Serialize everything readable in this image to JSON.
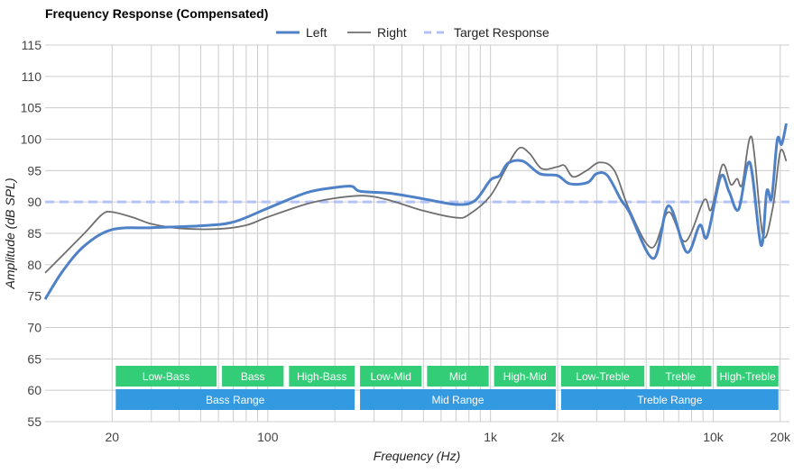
{
  "chart_data": {
    "type": "line",
    "title": "Frequency Response (Compensated)",
    "xlabel": "Frequency (Hz)",
    "ylabel": "Amplitude (dB SPL)",
    "x_scale": "log",
    "xlim": [
      10,
      22000
    ],
    "ylim": [
      55,
      115
    ],
    "y_ticks": [
      55,
      60,
      65,
      70,
      75,
      80,
      85,
      90,
      95,
      100,
      105,
      110,
      115
    ],
    "x_tick_labels": [
      {
        "value": 20,
        "label": "20"
      },
      {
        "value": 100,
        "label": "100"
      },
      {
        "value": 1000,
        "label": "1k"
      },
      {
        "value": 2000,
        "label": "2k"
      },
      {
        "value": 10000,
        "label": "10k"
      },
      {
        "value": 20000,
        "label": "20k"
      }
    ],
    "grid": true,
    "legend_position": "top-center",
    "series": [
      {
        "name": "Left",
        "color": "#4f81c7",
        "points": [
          [
            10,
            74.5
          ],
          [
            12,
            79
          ],
          [
            15,
            83
          ],
          [
            20,
            85.6
          ],
          [
            30,
            85.9
          ],
          [
            50,
            86.2
          ],
          [
            70,
            86.8
          ],
          [
            100,
            89
          ],
          [
            150,
            91.5
          ],
          [
            200,
            92.3
          ],
          [
            238,
            92.5
          ],
          [
            260,
            91.7
          ],
          [
            350,
            91.4
          ],
          [
            500,
            90.5
          ],
          [
            700,
            89.6
          ],
          [
            850,
            90.2
          ],
          [
            1000,
            93.5
          ],
          [
            1100,
            94.2
          ],
          [
            1200,
            96.2
          ],
          [
            1400,
            96.5
          ],
          [
            1664,
            94.5
          ],
          [
            2000,
            94.2
          ],
          [
            2270,
            92.9
          ],
          [
            2730,
            93.1
          ],
          [
            2990,
            94.5
          ],
          [
            3350,
            94.2
          ],
          [
            3860,
            90.3
          ],
          [
            4200,
            88.4
          ],
          [
            5400,
            81
          ],
          [
            6300,
            89.4
          ],
          [
            7600,
            82
          ],
          [
            8700,
            86.3
          ],
          [
            9400,
            84.5
          ],
          [
            10800,
            94
          ],
          [
            11800,
            91.6
          ],
          [
            13000,
            88.8
          ],
          [
            14600,
            96.3
          ],
          [
            16400,
            83.1
          ],
          [
            17400,
            91.7
          ],
          [
            18300,
            90.6
          ],
          [
            19400,
            99.9
          ],
          [
            20300,
            99.2
          ],
          [
            21300,
            102.5
          ]
        ]
      },
      {
        "name": "Right",
        "color": "#6f6f6f",
        "points": [
          [
            10,
            78.7
          ],
          [
            15,
            85
          ],
          [
            18,
            88
          ],
          [
            20,
            88.4
          ],
          [
            25,
            87.5
          ],
          [
            30,
            86.5
          ],
          [
            40,
            85.8
          ],
          [
            60,
            85.7
          ],
          [
            80,
            86.3
          ],
          [
            100,
            87.6
          ],
          [
            150,
            89.7
          ],
          [
            200,
            90.6
          ],
          [
            270,
            91
          ],
          [
            350,
            90.3
          ],
          [
            500,
            88.6
          ],
          [
            700,
            87.5
          ],
          [
            800,
            88
          ],
          [
            1000,
            91
          ],
          [
            1200,
            96
          ],
          [
            1350,
            98.6
          ],
          [
            1500,
            97.7
          ],
          [
            1700,
            95.3
          ],
          [
            2000,
            95.6
          ],
          [
            2150,
            95.8
          ],
          [
            2350,
            94
          ],
          [
            2700,
            95
          ],
          [
            3100,
            96.3
          ],
          [
            3600,
            95
          ],
          [
            4200,
            88.8
          ],
          [
            5300,
            82.7
          ],
          [
            6300,
            88.4
          ],
          [
            7500,
            83.7
          ],
          [
            9100,
            90.3
          ],
          [
            9800,
            88.8
          ],
          [
            11000,
            95.9
          ],
          [
            12000,
            92.8
          ],
          [
            12800,
            93.7
          ],
          [
            13500,
            92.8
          ],
          [
            14900,
            100.3
          ],
          [
            16700,
            84.8
          ],
          [
            18500,
            89
          ],
          [
            20000,
            98
          ],
          [
            21300,
            96.5
          ]
        ]
      },
      {
        "name": "Target Response",
        "color": "#b3c3f7",
        "dashed": true,
        "points": [
          [
            10,
            90
          ],
          [
            22000,
            90
          ]
        ]
      }
    ],
    "bands": [
      {
        "label": "Low-Bass",
        "from": 20,
        "to": 60
      },
      {
        "label": "Bass",
        "from": 60,
        "to": 120
      },
      {
        "label": "High-Bass",
        "from": 120,
        "to": 250
      },
      {
        "label": "Low-Mid",
        "from": 250,
        "to": 500
      },
      {
        "label": "Mid",
        "from": 500,
        "to": 1000
      },
      {
        "label": "High-Mid",
        "from": 1000,
        "to": 2000
      },
      {
        "label": "Low-Treble",
        "from": 2000,
        "to": 5000
      },
      {
        "label": "Treble",
        "from": 5000,
        "to": 10000
      },
      {
        "label": "High-Treble",
        "from": 10000,
        "to": 20000
      }
    ],
    "ranges": [
      {
        "label": "Bass Range",
        "from": 20,
        "to": 250
      },
      {
        "label": "Mid Range",
        "from": 250,
        "to": 2000
      },
      {
        "label": "Treble Range",
        "from": 2000,
        "to": 20000
      }
    ],
    "band_color": "#33cc77",
    "range_color": "#3399e0"
  }
}
